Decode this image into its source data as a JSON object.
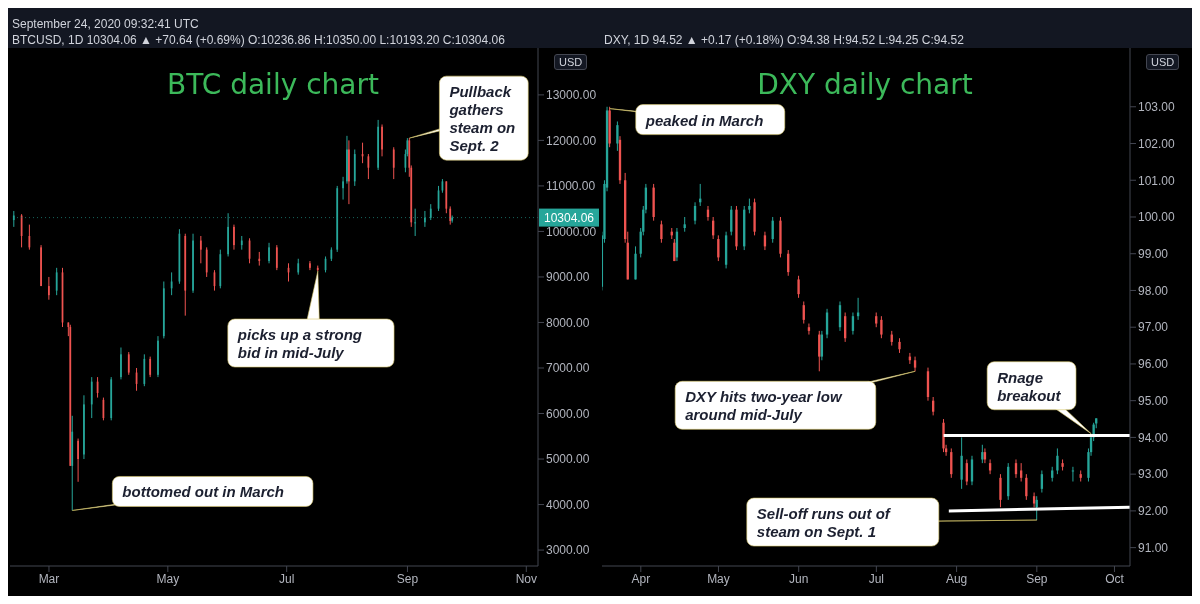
{
  "chart_data": [
    {
      "type": "candlestick",
      "title": "BTC daily chart",
      "ylabel": "USD",
      "annotations": [
        "September 24, 2020 09:32:41 UTC",
        "BTCUSD, 1D  10304.06 ▲ +70.64 (+0.69%)  O:10236.86  H:10350.00  L:10193.20  C:10304.06",
        {
          "text": "Pullback gathers steam on Sept. 2",
          "x": "2020-09-02",
          "y": 12050
        },
        {
          "text": "picks up a strong bid in mid-July",
          "x": "2020-07-17",
          "y": 9130
        },
        {
          "text": "bottomed out in March",
          "x": "2020-03-13",
          "y": 3870
        }
      ],
      "ref_lines": [
        {
          "axis": "y",
          "value": 10304.06,
          "label": "10304.06",
          "color": "#26a69a"
        }
      ],
      "x": [
        "2020-02-12",
        "2020-02-16",
        "2020-02-20",
        "2020-02-26",
        "2020-03-01",
        "2020-03-05",
        "2020-03-08",
        "2020-03-11",
        "2020-03-12",
        "2020-03-13",
        "2020-03-16",
        "2020-03-19",
        "2020-03-23",
        "2020-03-26",
        "2020-03-29",
        "2020-04-02",
        "2020-04-07",
        "2020-04-11",
        "2020-04-15",
        "2020-04-19",
        "2020-04-22",
        "2020-04-26",
        "2020-04-29",
        "2020-05-03",
        "2020-05-07",
        "2020-05-10",
        "2020-05-14",
        "2020-05-18",
        "2020-05-21",
        "2020-05-25",
        "2020-05-28",
        "2020-06-01",
        "2020-06-04",
        "2020-06-08",
        "2020-06-12",
        "2020-06-17",
        "2020-06-22",
        "2020-06-26",
        "2020-07-02",
        "2020-07-07",
        "2020-07-13",
        "2020-07-17",
        "2020-07-21",
        "2020-07-24",
        "2020-07-27",
        "2020-07-30",
        "2020-08-01",
        "2020-08-02",
        "2020-08-05",
        "2020-08-09",
        "2020-08-12",
        "2020-08-17",
        "2020-08-19",
        "2020-08-25",
        "2020-08-31",
        "2020-09-01",
        "2020-09-02",
        "2020-09-03",
        "2020-09-05",
        "2020-09-10",
        "2020-09-13",
        "2020-09-17",
        "2020-09-19",
        "2020-09-21",
        "2020-09-23",
        "2020-09-24"
      ],
      "ohlc": [
        [
          10250,
          10450,
          10100,
          10350
        ],
        [
          10350,
          10380,
          9650,
          9900
        ],
        [
          9900,
          10150,
          9600,
          9650
        ],
        [
          9650,
          9700,
          8800,
          8800
        ],
        [
          8800,
          9000,
          8500,
          8600
        ],
        [
          8700,
          9200,
          8600,
          9100
        ],
        [
          9100,
          9200,
          7900,
          8000
        ],
        [
          8000,
          8000,
          7700,
          7900
        ],
        [
          7900,
          7950,
          4850,
          4850
        ],
        [
          4850,
          5950,
          3870,
          5600
        ],
        [
          5400,
          5450,
          4500,
          5000
        ],
        [
          5100,
          6400,
          5000,
          6200
        ],
        [
          6200,
          6800,
          5900,
          6700
        ],
        [
          6700,
          6800,
          6350,
          6450
        ],
        [
          6300,
          6350,
          5850,
          5900
        ],
        [
          5900,
          6800,
          5850,
          6750
        ],
        [
          6800,
          7450,
          6750,
          7300
        ],
        [
          7300,
          7350,
          6850,
          6900
        ],
        [
          6900,
          7000,
          6500,
          6650
        ],
        [
          6650,
          7300,
          6600,
          7200
        ],
        [
          7200,
          7250,
          6800,
          6850
        ],
        [
          6850,
          7700,
          6800,
          7600
        ],
        [
          7700,
          8900,
          7650,
          8750
        ],
        [
          8750,
          9100,
          8600,
          8900
        ],
        [
          8900,
          10050,
          8850,
          9950
        ],
        [
          9900,
          9950,
          8150,
          8700
        ],
        [
          8700,
          9950,
          8650,
          9800
        ],
        [
          9800,
          9900,
          9300,
          9600
        ],
        [
          9600,
          9650,
          9000,
          9100
        ],
        [
          9100,
          9150,
          8700,
          8800
        ],
        [
          8800,
          9600,
          8750,
          9500
        ],
        [
          9500,
          10400,
          9450,
          10100
        ],
        [
          10100,
          10150,
          9600,
          9700
        ],
        [
          9700,
          9900,
          9600,
          9800
        ],
        [
          9800,
          9850,
          9300,
          9400
        ],
        [
          9400,
          9550,
          9250,
          9350
        ],
        [
          9350,
          9750,
          9300,
          9650
        ],
        [
          9650,
          9700,
          9150,
          9200
        ],
        [
          9200,
          9300,
          8900,
          9100
        ],
        [
          9100,
          9400,
          9050,
          9300
        ],
        [
          9300,
          9350,
          9150,
          9200
        ],
        [
          9200,
          9250,
          9130,
          9150
        ],
        [
          9150,
          9450,
          9100,
          9400
        ],
        [
          9400,
          9650,
          9350,
          9600
        ],
        [
          9600,
          11000,
          9550,
          10950
        ],
        [
          10950,
          11200,
          10700,
          11100
        ],
        [
          11100,
          12100,
          11050,
          11800
        ],
        [
          11800,
          12000,
          10600,
          11100
        ],
        [
          11100,
          11800,
          11000,
          11700
        ],
        [
          11700,
          11950,
          11500,
          11650
        ],
        [
          11650,
          11700,
          11150,
          11400
        ],
        [
          11400,
          12450,
          11350,
          12300
        ],
        [
          12300,
          12350,
          11650,
          11800
        ],
        [
          11800,
          11850,
          11150,
          11400
        ],
        [
          11400,
          11800,
          11300,
          11700
        ],
        [
          11700,
          12050,
          11650,
          12000
        ],
        [
          12000,
          12050,
          11200,
          11400
        ],
        [
          11400,
          11450,
          10100,
          10200
        ],
        [
          10200,
          10500,
          9900,
          10200
        ],
        [
          10200,
          10450,
          10100,
          10300
        ],
        [
          10300,
          10600,
          10250,
          10500
        ],
        [
          10500,
          11000,
          10450,
          10900
        ],
        [
          10900,
          11150,
          10850,
          11100
        ],
        [
          11100,
          11100,
          10400,
          10500
        ],
        [
          10500,
          10550,
          10150,
          10230
        ],
        [
          10236.86,
          10350,
          10193.2,
          10304.06
        ]
      ],
      "xlim": [
        "2020-02-10",
        "2020-11-07"
      ],
      "xticks": [
        {
          "value": "2020-03-01",
          "label": "Mar"
        },
        {
          "value": "2020-05-01",
          "label": "May"
        },
        {
          "value": "2020-07-01",
          "label": "Jul"
        },
        {
          "value": "2020-09-01",
          "label": "Sep"
        },
        {
          "value": "2020-11-01",
          "label": "Nov"
        }
      ],
      "ylim": [
        2650,
        14030
      ],
      "yticks": [
        {
          "value": 3000,
          "label": "3000.00"
        },
        {
          "value": 4000,
          "label": "4000.00"
        },
        {
          "value": 5000,
          "label": "5000.00"
        },
        {
          "value": 6000,
          "label": "6000.00"
        },
        {
          "value": 7000,
          "label": "7000.00"
        },
        {
          "value": 8000,
          "label": "8000.00"
        },
        {
          "value": 9000,
          "label": "9000.00"
        },
        {
          "value": 10000,
          "label": "10000.00"
        },
        {
          "value": 11000,
          "label": "11000.00"
        },
        {
          "value": 12000,
          "label": "12000.00"
        },
        {
          "value": 13000,
          "label": "13000.00"
        }
      ]
    },
    {
      "type": "candlestick",
      "title": "DXY daily chart",
      "ylabel": "USD",
      "annotations": [
        "DXY, 1D  94.52 ▲ +0.17 (+0.18%)  O:94.38  H:94.52  L:94.25  C:94.52",
        {
          "text": "peaked in March",
          "x": "2020-03-20",
          "y": 102.95
        },
        {
          "text": "DXY hits two-year low around mid-July",
          "x": "2020-07-16",
          "y": 95.8
        },
        {
          "text": "Rnage breakout",
          "x": "2020-09-22",
          "y": 94.1
        },
        {
          "text": "Sell-off runs out of steam on Sept. 1",
          "x": "2020-09-01",
          "y": 91.75
        }
      ],
      "x": [
        "2020-03-17",
        "2020-03-18",
        "2020-03-19",
        "2020-03-20",
        "2020-03-23",
        "2020-03-24",
        "2020-03-26",
        "2020-03-27",
        "2020-03-30",
        "2020-04-01",
        "2020-04-02",
        "2020-04-03",
        "2020-04-06",
        "2020-04-09",
        "2020-04-13",
        "2020-04-14",
        "2020-04-15",
        "2020-04-18",
        "2020-04-22",
        "2020-04-24",
        "2020-04-27",
        "2020-04-29",
        "2020-05-01",
        "2020-05-04",
        "2020-05-06",
        "2020-05-08",
        "2020-05-11",
        "2020-05-13",
        "2020-05-15",
        "2020-05-19",
        "2020-05-22",
        "2020-05-25",
        "2020-05-28",
        "2020-06-01",
        "2020-06-03",
        "2020-06-05",
        "2020-06-09",
        "2020-06-10",
        "2020-06-12",
        "2020-06-17",
        "2020-06-19",
        "2020-06-22",
        "2020-06-24",
        "2020-07-01",
        "2020-07-03",
        "2020-07-07",
        "2020-07-10",
        "2020-07-14",
        "2020-07-16",
        "2020-07-21",
        "2020-07-23",
        "2020-07-27",
        "2020-07-28",
        "2020-07-30",
        "2020-08-03",
        "2020-08-05",
        "2020-08-07",
        "2020-08-11",
        "2020-08-12",
        "2020-08-14",
        "2020-08-18",
        "2020-08-21",
        "2020-08-24",
        "2020-08-26",
        "2020-08-28",
        "2020-08-31",
        "2020-09-01",
        "2020-09-03",
        "2020-09-07",
        "2020-09-09",
        "2020-09-11",
        "2020-09-15",
        "2020-09-18",
        "2020-09-21",
        "2020-09-22",
        "2020-09-23",
        "2020-09-24"
      ],
      "ohlc": [
        [
          98.1,
          99.6,
          98.0,
          99.5
        ],
        [
          99.4,
          101.0,
          99.3,
          100.9
        ],
        [
          100.8,
          103.0,
          100.7,
          102.9
        ],
        [
          102.9,
          103.0,
          101.9,
          102.0
        ],
        [
          102.0,
          102.6,
          101.8,
          102.5
        ],
        [
          102.1,
          102.2,
          100.9,
          101.0
        ],
        [
          101.0,
          101.2,
          99.3,
          99.4
        ],
        [
          99.3,
          99.6,
          98.3,
          98.3
        ],
        [
          98.3,
          99.2,
          98.3,
          99.0
        ],
        [
          99.0,
          99.7,
          98.9,
          99.6
        ],
        [
          99.6,
          100.3,
          99.5,
          100.2
        ],
        [
          100.2,
          100.9,
          100.1,
          100.8
        ],
        [
          100.8,
          100.9,
          99.9,
          100.0
        ],
        [
          99.8,
          99.9,
          99.3,
          99.4
        ],
        [
          99.6,
          99.7,
          99.4,
          99.5
        ],
        [
          99.3,
          99.4,
          98.8,
          98.8
        ],
        [
          98.9,
          99.7,
          98.8,
          99.6
        ],
        [
          99.7,
          100.0,
          99.6,
          99.8
        ],
        [
          99.9,
          100.4,
          99.8,
          100.3
        ],
        [
          100.4,
          100.9,
          100.3,
          100.5
        ],
        [
          100.2,
          100.3,
          99.9,
          100.0
        ],
        [
          99.9,
          100.0,
          99.4,
          99.5
        ],
        [
          99.4,
          99.5,
          98.8,
          98.9
        ],
        [
          98.7,
          99.6,
          98.6,
          99.5
        ],
        [
          99.6,
          100.3,
          99.5,
          100.2
        ],
        [
          100.2,
          100.3,
          99.1,
          99.2
        ],
        [
          99.2,
          100.3,
          99.1,
          100.2
        ],
        [
          100.2,
          100.5,
          100.1,
          100.3
        ],
        [
          100.4,
          100.5,
          99.5,
          99.6
        ],
        [
          99.5,
          99.6,
          99.1,
          99.2
        ],
        [
          99.4,
          100.0,
          99.3,
          99.9
        ],
        [
          99.9,
          100.0,
          98.9,
          99.0
        ],
        [
          99.0,
          99.1,
          98.4,
          98.5
        ],
        [
          98.3,
          98.4,
          97.8,
          97.9
        ],
        [
          97.6,
          97.7,
          97.1,
          97.2
        ],
        [
          97.0,
          97.1,
          96.8,
          96.9
        ],
        [
          96.8,
          96.9,
          95.8,
          96.2
        ],
        [
          96.2,
          96.9,
          96.1,
          96.8
        ],
        [
          96.8,
          97.5,
          96.7,
          97.4
        ],
        [
          97.0,
          97.7,
          96.9,
          97.6
        ],
        [
          97.3,
          97.4,
          96.6,
          96.7
        ],
        [
          96.9,
          97.4,
          96.8,
          97.3
        ],
        [
          97.3,
          97.8,
          97.2,
          97.4
        ],
        [
          97.3,
          97.4,
          97.0,
          97.1
        ],
        [
          97.2,
          97.3,
          96.7,
          96.8
        ],
        [
          96.8,
          96.9,
          96.5,
          96.6
        ],
        [
          96.6,
          96.7,
          96.3,
          96.4
        ],
        [
          96.2,
          96.3,
          96.0,
          96.1
        ],
        [
          96.1,
          96.2,
          95.8,
          95.9
        ],
        [
          95.8,
          95.9,
          95.0,
          95.1
        ],
        [
          95.0,
          95.1,
          94.6,
          94.7
        ],
        [
          94.4,
          94.5,
          93.6,
          93.7
        ],
        [
          93.7,
          93.8,
          93.5,
          93.6
        ],
        [
          93.6,
          93.7,
          92.9,
          93.0
        ],
        [
          92.85,
          94.0,
          92.6,
          93.5
        ],
        [
          93.3,
          93.4,
          92.7,
          92.8
        ],
        [
          92.8,
          93.5,
          92.7,
          93.4
        ],
        [
          93.4,
          93.8,
          93.3,
          93.6
        ],
        [
          93.6,
          93.7,
          93.3,
          93.4
        ],
        [
          93.3,
          93.4,
          93.0,
          93.1
        ],
        [
          92.9,
          93.0,
          92.1,
          92.3
        ],
        [
          92.4,
          93.3,
          92.3,
          93.2
        ],
        [
          93.3,
          93.4,
          92.9,
          93.0
        ],
        [
          93.1,
          93.3,
          92.8,
          92.9
        ],
        [
          92.9,
          93.0,
          92.3,
          92.4
        ],
        [
          92.4,
          92.5,
          92.1,
          92.2
        ],
        [
          92.1,
          92.4,
          91.75,
          92.3
        ],
        [
          92.6,
          93.1,
          92.5,
          93.0
        ],
        [
          92.9,
          93.2,
          92.8,
          93.1
        ],
        [
          93.1,
          93.7,
          93.0,
          93.5
        ],
        [
          93.3,
          93.4,
          93.1,
          93.2
        ],
        [
          93.1,
          93.2,
          92.8,
          93.1
        ],
        [
          93.0,
          93.1,
          92.8,
          92.9
        ],
        [
          92.9,
          93.7,
          92.8,
          93.6
        ],
        [
          93.6,
          94.1,
          93.5,
          94.0
        ],
        [
          94.0,
          94.4,
          93.9,
          94.35
        ],
        [
          94.38,
          94.52,
          94.25,
          94.52
        ]
      ],
      "series": [
        {
          "type": "line",
          "color": "#ffffff",
          "x": [
            "2020-07-27",
            "2020-10-07"
          ],
          "values": [
            94.05,
            94.05
          ]
        },
        {
          "type": "line",
          "color": "#ffffff",
          "x": [
            "2020-07-29",
            "2020-10-07"
          ],
          "values": [
            92.0,
            92.1
          ]
        }
      ],
      "xlim": [
        "2020-03-17",
        "2020-10-07"
      ],
      "xticks": [
        {
          "value": "2020-04-01",
          "label": "Apr"
        },
        {
          "value": "2020-05-01",
          "label": "May"
        },
        {
          "value": "2020-06-01",
          "label": "Jun"
        },
        {
          "value": "2020-07-01",
          "label": "Jul"
        },
        {
          "value": "2020-08-01",
          "label": "Aug"
        },
        {
          "value": "2020-09-01",
          "label": "Sep"
        },
        {
          "value": "2020-10-01",
          "label": "Oct"
        }
      ],
      "ylim": [
        90.5,
        104.6
      ],
      "yticks": [
        {
          "value": 91,
          "label": "91.00"
        },
        {
          "value": 92,
          "label": "92.00"
        },
        {
          "value": 93,
          "label": "93.00"
        },
        {
          "value": 94,
          "label": "94.00"
        },
        {
          "value": 95,
          "label": "95.00"
        },
        {
          "value": 96,
          "label": "96.00"
        },
        {
          "value": 97,
          "label": "97.00"
        },
        {
          "value": 98,
          "label": "98.00"
        },
        {
          "value": 99,
          "label": "99.00"
        },
        {
          "value": 100,
          "label": "100.00"
        },
        {
          "value": 101,
          "label": "101.00"
        },
        {
          "value": 102,
          "label": "102.00"
        },
        {
          "value": 103,
          "label": "103.00"
        }
      ]
    }
  ]
}
